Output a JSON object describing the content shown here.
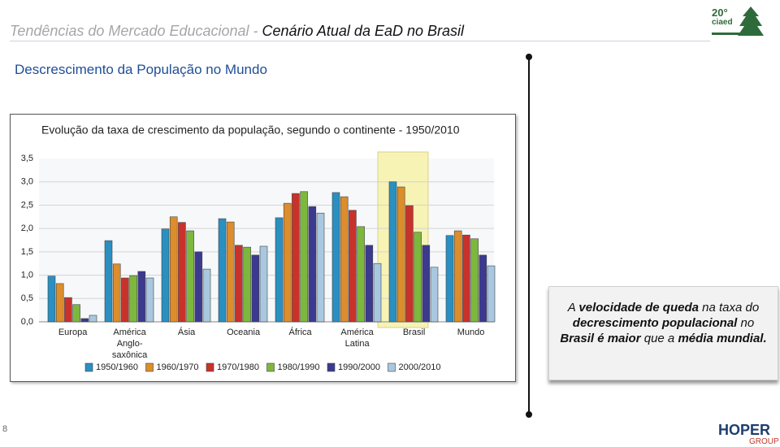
{
  "header": {
    "title_part1": "Tendências do Mercado Educacional - ",
    "title_part2": "Cenário Atual da EaD no Brasil"
  },
  "logo": {
    "number": "20°",
    "name": "ciaed"
  },
  "subtitle": "Descrescimento da População no Mundo",
  "chart_data": {
    "type": "bar",
    "title": "Evolução da taxa de crescimento da população, segundo o continente - 1950/2010",
    "categories": [
      "Europa",
      "América Anglo-saxônica",
      "Ásia",
      "Oceania",
      "África",
      "América Latina",
      "Brasil",
      "Mundo"
    ],
    "series": [
      {
        "name": "1950/1960",
        "color": "#2a8fc1",
        "values": [
          0.98,
          1.74,
          1.99,
          2.21,
          2.23,
          2.77,
          3.0,
          1.85
        ]
      },
      {
        "name": "1960/1970",
        "color": "#dc8d2c",
        "values": [
          0.82,
          1.24,
          2.25,
          2.14,
          2.54,
          2.68,
          2.89,
          1.95
        ]
      },
      {
        "name": "1970/1980",
        "color": "#c8322a",
        "values": [
          0.52,
          0.94,
          2.13,
          1.64,
          2.75,
          2.39,
          2.49,
          1.86
        ]
      },
      {
        "name": "1980/1990",
        "color": "#7cb83d",
        "values": [
          0.37,
          0.99,
          1.95,
          1.6,
          2.79,
          2.04,
          1.92,
          1.78
        ]
      },
      {
        "name": "1990/2000",
        "color": "#3b3a8f",
        "values": [
          0.07,
          1.08,
          1.5,
          1.43,
          2.47,
          1.64,
          1.64,
          1.43
        ]
      },
      {
        "name": "2000/2010",
        "color": "#a9c8e0",
        "values": [
          0.14,
          0.94,
          1.13,
          1.62,
          2.33,
          1.25,
          1.17,
          1.2
        ]
      }
    ],
    "ylim": [
      0,
      3.5
    ],
    "yticks": [
      {
        "value": 0,
        "label": "0,0"
      },
      {
        "value": 0.5,
        "label": "0,5"
      },
      {
        "value": 1,
        "label": "1,0"
      },
      {
        "value": 1.5,
        "label": "1,5"
      },
      {
        "value": 2,
        "label": "2,0"
      },
      {
        "value": 2.5,
        "label": "2,5"
      },
      {
        "value": 3,
        "label": "3,0"
      },
      {
        "value": 3.5,
        "label": "3,5"
      }
    ],
    "grid": true,
    "legend": "bottom"
  },
  "callout": [
    {
      "text": "A ",
      "bold": false
    },
    {
      "text": "velocidade de queda",
      "bold": true
    },
    {
      "text": " na taxa do ",
      "bold": false
    },
    {
      "text": "decrescimento populacional",
      "bold": true
    },
    {
      "text": " no ",
      "bold": false
    },
    {
      "text": "Brasil é maior",
      "bold": true
    },
    {
      "text": " que a ",
      "bold": false
    },
    {
      "text": "média mundial.",
      "bold": true
    }
  ],
  "page_number": "8",
  "footer_logo": {
    "name": "HOPER",
    "tag": "GROUP"
  }
}
